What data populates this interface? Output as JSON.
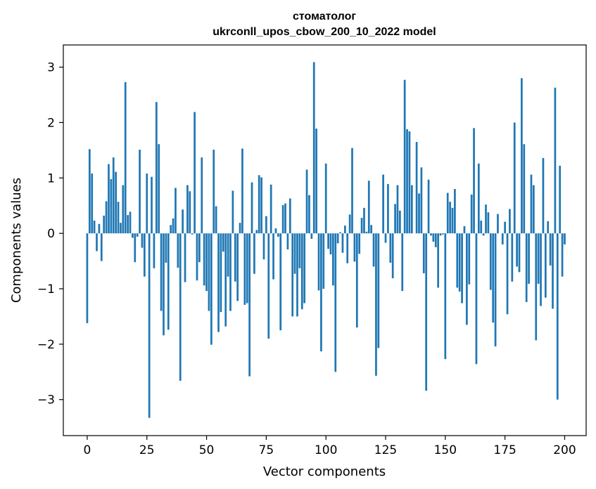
{
  "chart_data": {
    "type": "bar",
    "title": "стоматолог",
    "subtitle": "ukrconll_upos_cbow_200_10_2022 model",
    "xlabel": "Vector components",
    "ylabel": "Components values",
    "xlim": [
      -10,
      209
    ],
    "ylim": [
      -3.65,
      3.4
    ],
    "x_ticks": [
      0,
      25,
      50,
      75,
      100,
      125,
      150,
      175,
      200
    ],
    "x_tick_labels": [
      "0",
      "25",
      "50",
      "75",
      "100",
      "125",
      "150",
      "175",
      "200"
    ],
    "y_ticks": [
      -3,
      -2,
      -1,
      0,
      1,
      2,
      3
    ],
    "y_tick_labels": [
      "−3",
      "−2",
      "−1",
      "0",
      "1",
      "2",
      "3"
    ],
    "grid": false,
    "bar_color": "#1f77b4",
    "values": [
      -1.62,
      1.52,
      1.08,
      0.23,
      -0.32,
      0.17,
      -0.5,
      0.32,
      0.58,
      1.25,
      0.98,
      1.37,
      1.11,
      0.57,
      0.19,
      0.87,
      2.73,
      0.33,
      0.39,
      -0.08,
      -0.52,
      -0.06,
      1.51,
      -0.26,
      -0.78,
      1.08,
      -3.33,
      1.02,
      -0.63,
      2.37,
      1.61,
      -1.4,
      -1.84,
      -0.53,
      -1.74,
      0.15,
      0.27,
      0.82,
      -0.62,
      -2.66,
      0.43,
      -0.88,
      0.87,
      0.76,
      -0.02,
      2.19,
      -0.85,
      -0.52,
      1.37,
      -0.94,
      -1.04,
      -1.4,
      -2.01,
      1.51,
      0.49,
      -1.78,
      -1.42,
      -0.33,
      -1.68,
      -0.78,
      -1.4,
      0.77,
      -0.87,
      -1.22,
      0.19,
      1.53,
      -1.29,
      -1.26,
      -2.58,
      0.92,
      -0.73,
      0.06,
      1.05,
      1.01,
      -0.47,
      0.31,
      -1.9,
      0.88,
      -0.83,
      0.09,
      -0.06,
      -1.75,
      0.51,
      0.54,
      -0.29,
      0.63,
      -1.5,
      -0.73,
      -1.5,
      -0.63,
      -1.37,
      -1.26,
      1.15,
      0.69,
      -0.1,
      3.09,
      1.89,
      -1.03,
      -2.13,
      -1.0,
      1.26,
      -0.28,
      -0.38,
      -0.94,
      -2.5,
      -0.18,
      0.02,
      -0.35,
      0.14,
      -0.54,
      0.34,
      1.54,
      -0.51,
      -1.7,
      -0.37,
      0.28,
      0.46,
      0.03,
      0.95,
      0.15,
      -0.6,
      -2.57,
      -2.07,
      0.0,
      1.06,
      -0.17,
      0.89,
      -0.53,
      -0.81,
      0.53,
      0.87,
      0.41,
      -1.04,
      2.77,
      1.88,
      1.84,
      0.87,
      0.0,
      1.65,
      0.72,
      1.19,
      -0.72,
      -2.84,
      0.97,
      -0.04,
      -0.15,
      -0.25,
      -0.98,
      -0.04,
      -0.02,
      -2.27,
      0.73,
      0.57,
      0.46,
      0.8,
      -0.98,
      -1.05,
      -1.26,
      0.13,
      -1.65,
      -0.92,
      0.7,
      1.9,
      -2.36,
      1.26,
      0.23,
      -0.04,
      0.52,
      0.38,
      -1.02,
      -1.61,
      -2.04,
      0.35,
      0.0,
      -0.2,
      0.21,
      -1.46,
      0.44,
      -0.87,
      2.0,
      -0.6,
      -0.7,
      2.8,
      1.61,
      -1.24,
      -0.91,
      1.06,
      0.87,
      -1.93,
      -0.91,
      -1.31,
      1.36,
      -1.16,
      0.22,
      -0.58,
      -1.36,
      2.63,
      -3.0,
      1.22,
      -0.78,
      -0.2
    ]
  }
}
